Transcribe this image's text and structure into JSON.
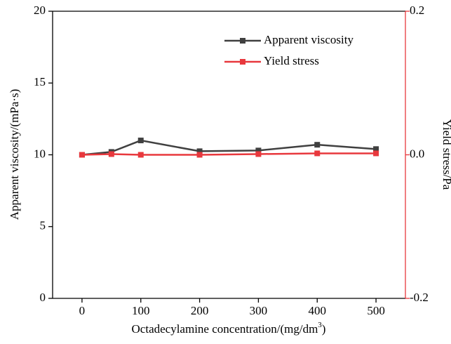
{
  "chart_data": {
    "type": "line",
    "x": [
      0,
      50,
      100,
      200,
      300,
      400,
      500
    ],
    "x_label_parts": [
      "Octadecylamine concentration/(mg/dm",
      "3",
      ")"
    ],
    "y_label": "Apparent viscosity/(mPa·s)",
    "y2_label": "Yield stress/Pa",
    "series": [
      {
        "name": "Apparent viscosity",
        "color": "#404040",
        "values": [
          10.0,
          10.2,
          11.0,
          10.25,
          10.3,
          10.7,
          10.4
        ]
      },
      {
        "name": "Yield stress",
        "color": "#e8383d",
        "axis": "y2",
        "values": [
          0,
          0.001,
          0,
          0,
          0.001,
          0.002,
          0.002
        ]
      }
    ],
    "xlim": [
      -50,
      550
    ],
    "xticks": [
      0,
      100,
      200,
      300,
      400,
      500
    ],
    "ylim": [
      0,
      20
    ],
    "yticks": [
      0,
      5,
      10,
      15,
      20
    ],
    "y2lim": [
      -0.2,
      0.2
    ],
    "y2ticks": [
      -0.2,
      {
        "value": 0,
        "label": "0.0"
      },
      0.2
    ],
    "y2_color": "#e8383d",
    "legend": "upper right"
  }
}
